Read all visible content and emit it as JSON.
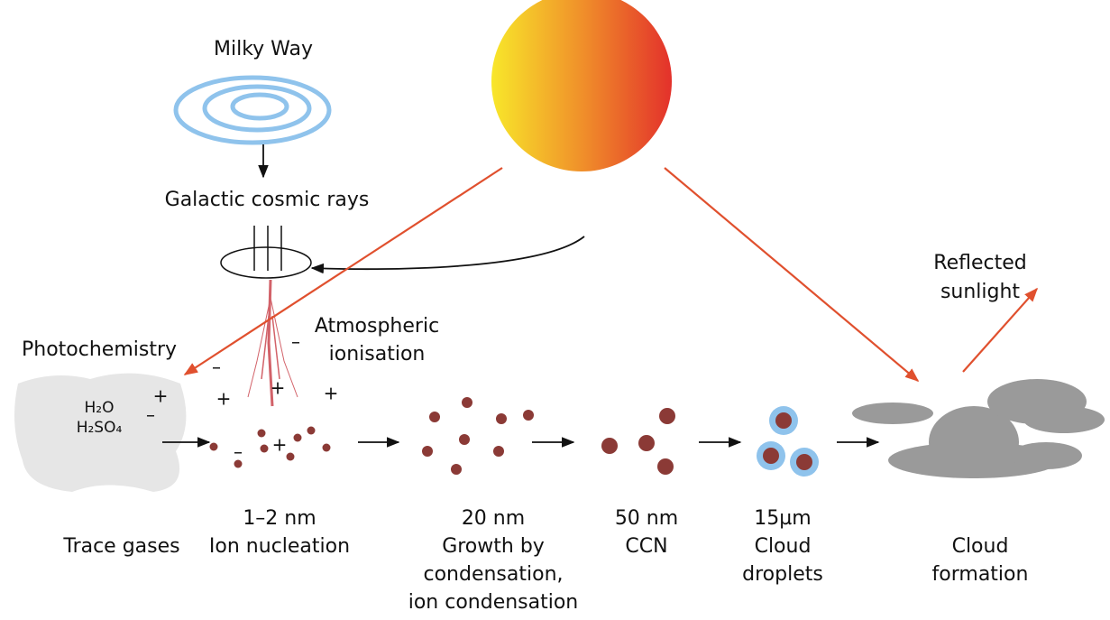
{
  "labels": {
    "milky_way": "Milky Way",
    "cosmic_rays": "Galactic cosmic rays",
    "ionisation": [
      "Atmospheric",
      "ionisation"
    ],
    "photochemistry": "Photochemistry",
    "reflected": [
      "Reflected",
      "sunlight"
    ],
    "molecules": [
      "H₂O",
      "H₂SO₄"
    ]
  },
  "charges": [
    "+",
    "–",
    "–",
    "–",
    "+",
    "+",
    "+",
    "–",
    "+"
  ],
  "stages": [
    {
      "lines": [
        "Trace gases"
      ]
    },
    {
      "lines": [
        "1–2 nm",
        "Ion nucleation"
      ]
    },
    {
      "lines": [
        "20 nm",
        "Growth by",
        "condensation,",
        "ion condensation"
      ]
    },
    {
      "lines": [
        "50 nm",
        "CCN"
      ]
    },
    {
      "lines": [
        "15µm",
        "Cloud",
        "droplets"
      ]
    },
    {
      "lines": [
        "Cloud",
        "formation"
      ]
    }
  ]
}
